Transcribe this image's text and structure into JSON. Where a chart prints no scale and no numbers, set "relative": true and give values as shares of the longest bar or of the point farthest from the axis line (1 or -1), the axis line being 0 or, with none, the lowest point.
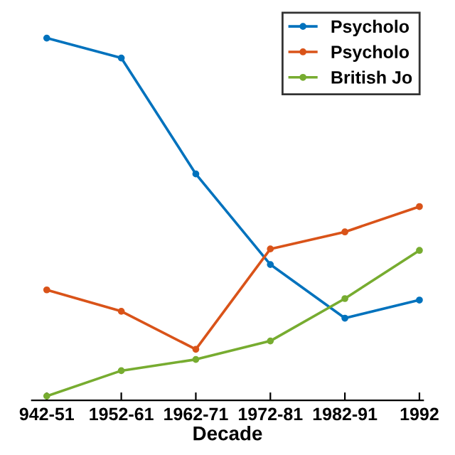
{
  "chart_data": {
    "type": "line",
    "xlabel": "Decade",
    "relative": true,
    "marker": "circle",
    "line_style": "solid",
    "grid": false,
    "legend": "top right",
    "categories": [
      "942-51",
      "1952-61",
      "1962-71",
      "1972-81",
      "1982-91",
      "1992"
    ],
    "series": [
      {
        "name": "Psycholo",
        "color": "#0072bd",
        "values": [
          1,
          0.945,
          0.625,
          0.375,
          0.227,
          0.277
        ]
      },
      {
        "name": "Psycholo",
        "color": "#d95319",
        "values": [
          0.305,
          0.246,
          0.141,
          0.418,
          0.465,
          0.535
        ]
      },
      {
        "name": "British Jo",
        "color": "#77ac30",
        "values": [
          0.012,
          0.082,
          0.113,
          0.164,
          0.281,
          0.414
        ]
      }
    ]
  }
}
